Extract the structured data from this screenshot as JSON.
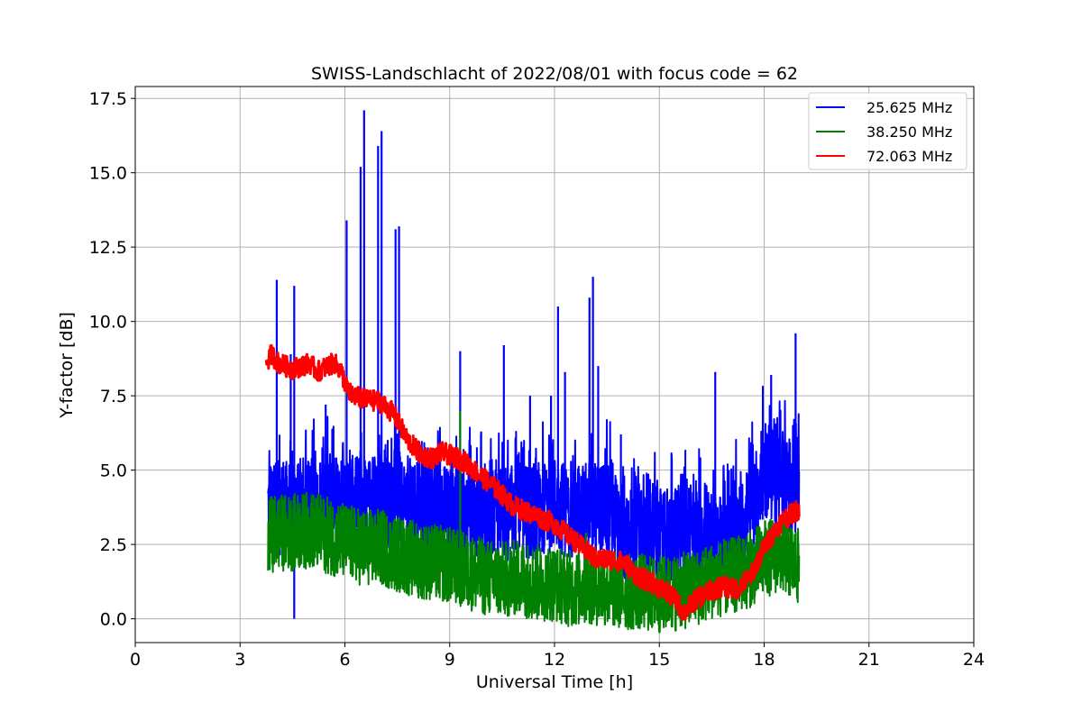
{
  "chart_data": {
    "type": "line",
    "title": "SWISS-Landschlacht of 2022/08/01 with focus code = 62",
    "xlabel": "Universal Time [h]",
    "ylabel": "Y-factor [dB]",
    "xlim": [
      0,
      24
    ],
    "ylim": [
      -0.8,
      17.9
    ],
    "xticks": [
      "0",
      "3",
      "6",
      "9",
      "12",
      "15",
      "18",
      "21",
      "24"
    ],
    "yticks": [
      "0.0",
      "2.5",
      "5.0",
      "7.5",
      "10.0",
      "12.5",
      "15.0",
      "17.5"
    ],
    "grid": true,
    "legend_position": "top-right",
    "series": [
      {
        "name": "25.625 MHz",
        "color": "#0000ff",
        "x": [
          3.8,
          4.0,
          4.5,
          5.0,
          5.5,
          6.0,
          6.5,
          7.0,
          7.5,
          8.0,
          8.5,
          9.0,
          9.5,
          10.0,
          10.5,
          11.0,
          11.5,
          12.0,
          12.5,
          13.0,
          13.5,
          14.0,
          14.5,
          15.0,
          15.5,
          16.0,
          16.5,
          17.0,
          17.5,
          18.0,
          18.5,
          19.0
        ],
        "values": [
          3.8,
          3.7,
          3.8,
          3.9,
          3.9,
          3.9,
          4.0,
          3.9,
          3.9,
          3.8,
          3.7,
          3.7,
          3.6,
          3.5,
          3.5,
          3.7,
          3.5,
          3.9,
          3.5,
          3.8,
          3.6,
          2.8,
          3.2,
          2.8,
          2.9,
          2.8,
          2.7,
          2.6,
          3.2,
          5.0,
          4.5,
          4.5
        ],
        "spikes": [
          {
            "x": 4.05,
            "y": 11.4
          },
          {
            "x": 4.45,
            "y": 8.9
          },
          {
            "x": 4.55,
            "y": 11.2
          },
          {
            "x": 4.55,
            "y": 0.0
          },
          {
            "x": 5.45,
            "y": 7.2
          },
          {
            "x": 6.05,
            "y": 13.4
          },
          {
            "x": 6.45,
            "y": 15.2
          },
          {
            "x": 6.55,
            "y": 17.1
          },
          {
            "x": 6.95,
            "y": 15.9
          },
          {
            "x": 7.05,
            "y": 16.4
          },
          {
            "x": 7.45,
            "y": 13.1
          },
          {
            "x": 7.55,
            "y": 13.2
          },
          {
            "x": 9.3,
            "y": 9.0
          },
          {
            "x": 9.9,
            "y": 6.3
          },
          {
            "x": 10.55,
            "y": 9.2
          },
          {
            "x": 11.3,
            "y": 7.5
          },
          {
            "x": 11.9,
            "y": 7.5
          },
          {
            "x": 12.1,
            "y": 10.5
          },
          {
            "x": 12.3,
            "y": 8.3
          },
          {
            "x": 13.0,
            "y": 10.8
          },
          {
            "x": 13.1,
            "y": 11.5
          },
          {
            "x": 13.25,
            "y": 8.5
          },
          {
            "x": 13.9,
            "y": 6.2
          },
          {
            "x": 16.6,
            "y": 8.3
          },
          {
            "x": 18.2,
            "y": 8.2
          },
          {
            "x": 18.9,
            "y": 9.6
          }
        ]
      },
      {
        "name": "38.250 MHz",
        "color": "#008000",
        "x": [
          3.8,
          4.0,
          4.5,
          5.0,
          5.5,
          6.0,
          6.5,
          7.0,
          7.5,
          8.0,
          8.5,
          9.0,
          9.5,
          10.0,
          10.5,
          11.0,
          11.5,
          12.0,
          12.5,
          13.0,
          13.5,
          14.0,
          14.5,
          15.0,
          15.5,
          16.0,
          16.5,
          17.0,
          17.5,
          18.0,
          18.5,
          19.0
        ],
        "values": [
          2.8,
          2.9,
          2.9,
          3.0,
          2.8,
          2.6,
          2.4,
          2.4,
          2.2,
          2.0,
          1.9,
          1.8,
          1.6,
          1.4,
          1.3,
          1.4,
          1.2,
          1.2,
          1.0,
          1.1,
          1.0,
          0.9,
          0.9,
          0.8,
          0.9,
          1.0,
          1.3,
          1.4,
          1.6,
          2.0,
          2.2,
          1.7
        ],
        "spikes": [
          {
            "x": 9.3,
            "y": 7.0
          },
          {
            "x": 12.9,
            "y": 2.9
          }
        ]
      },
      {
        "name": "72.063 MHz",
        "color": "#ff0000",
        "x": [
          3.75,
          3.9,
          4.1,
          4.5,
          5.0,
          5.2,
          5.5,
          5.7,
          5.9,
          6.1,
          6.5,
          7.0,
          7.4,
          7.8,
          8.2,
          8.5,
          8.8,
          9.0,
          9.4,
          9.7,
          10.0,
          10.4,
          10.8,
          11.2,
          11.6,
          12.0,
          12.4,
          12.8,
          13.2,
          13.6,
          14.0,
          14.4,
          14.8,
          15.2,
          15.5,
          15.7,
          16.0,
          16.4,
          16.8,
          17.2,
          17.6,
          18.0,
          18.5,
          19.0
        ],
        "values": [
          8.6,
          8.9,
          8.6,
          8.4,
          8.6,
          8.3,
          8.5,
          8.6,
          8.3,
          7.6,
          7.4,
          7.3,
          6.9,
          6.0,
          5.5,
          5.4,
          5.6,
          5.5,
          5.3,
          5.0,
          4.7,
          4.3,
          3.8,
          3.6,
          3.4,
          3.2,
          2.8,
          2.4,
          2.0,
          2.0,
          1.9,
          1.4,
          1.2,
          0.9,
          0.6,
          0.2,
          0.6,
          0.9,
          1.1,
          1.0,
          1.4,
          2.4,
          3.3,
          3.7
        ]
      }
    ]
  }
}
